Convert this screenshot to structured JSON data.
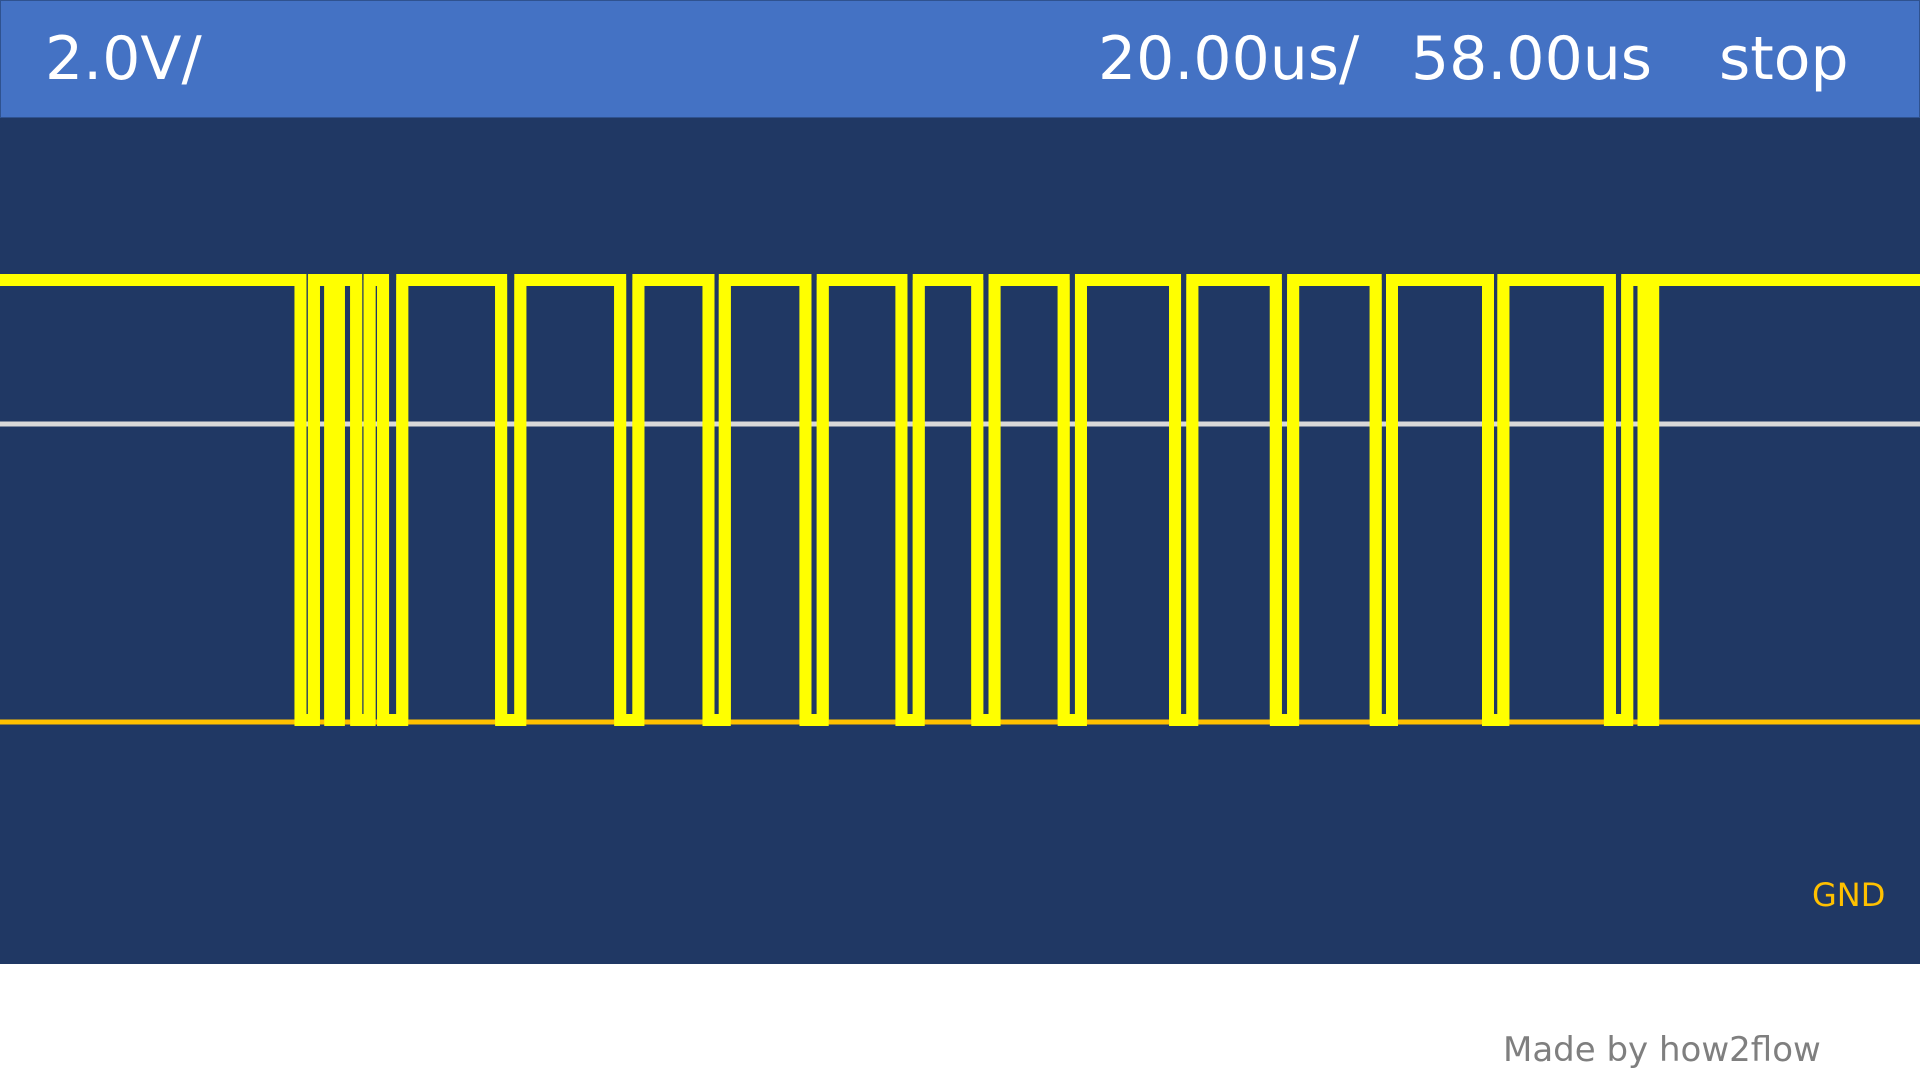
{
  "header": {
    "volt_div": "2.0V/",
    "time_div": "20.00us/",
    "time_position": "58.00us",
    "run_state": "stop"
  },
  "gnd_label": "GND",
  "credit": "Made by how2flow",
  "colors": {
    "header_bg": "#4472c4",
    "screen_bg": "#203864",
    "trace": "#ffff00",
    "ground": "#ffc000",
    "threshold": "#d9d9d9",
    "text": "#ffffff",
    "credit": "#7f7f7f"
  },
  "chart_data": {
    "type": "line",
    "title": "",
    "xlabel": "",
    "ylabel": "",
    "levels": [
      "low",
      "high"
    ],
    "description_note": "",
    "edges_x_norm": [
      0.1565,
      0.1635,
      0.172,
      0.1765,
      0.1855,
      0.1925,
      0.1995,
      0.2095,
      0.261,
      0.271,
      0.323,
      0.3325,
      0.369,
      0.3775,
      0.4195,
      0.4285,
      0.4695,
      0.4785,
      0.509,
      0.518,
      0.554,
      0.563,
      0.612,
      0.621,
      0.6645,
      0.6735,
      0.7165,
      0.725,
      0.775,
      0.783,
      0.8385,
      0.8475,
      0.856,
      0.861
    ]
  }
}
